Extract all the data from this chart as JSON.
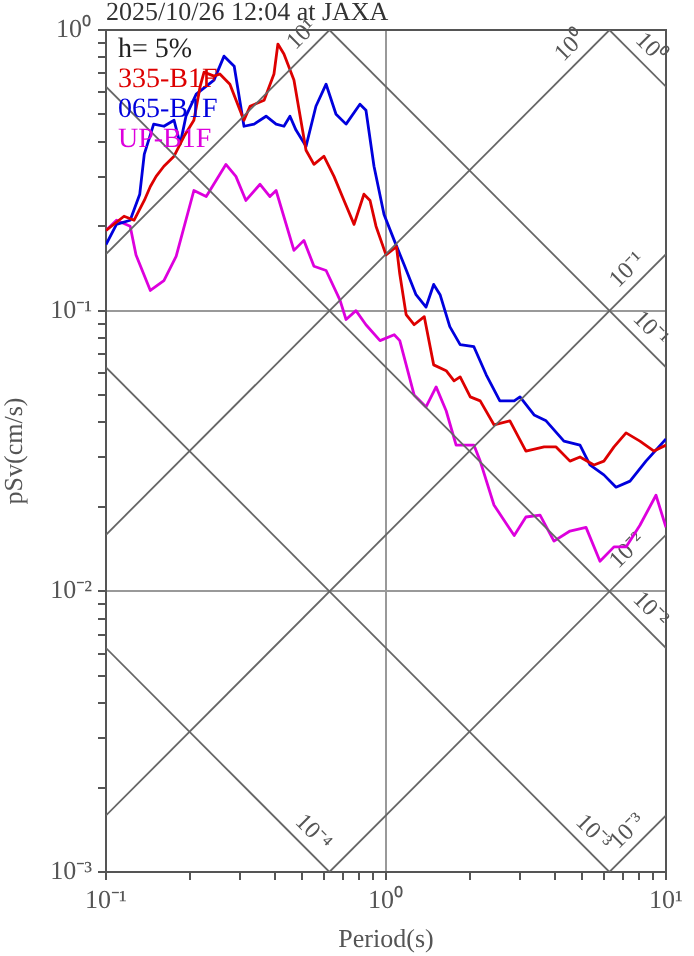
{
  "chart_data": {
    "type": "line",
    "title": "2025/10/26 12:04 at JAXA",
    "xlabel": "Period(s)",
    "ylabel": "pSv(cm/s)",
    "log": "xy",
    "grid": true,
    "legend": "top left",
    "xlim": [
      0.1,
      10
    ],
    "ylim": [
      0.001,
      1
    ],
    "xticks": [
      {
        "value": 0.1,
        "label": "10⁻¹"
      },
      {
        "value": 0.2,
        "label": null
      },
      {
        "value": 0.3,
        "label": null
      },
      {
        "value": 0.4,
        "label": null
      },
      {
        "value": 0.5,
        "label": null
      },
      {
        "value": 0.6,
        "label": null
      },
      {
        "value": 0.7,
        "label": null
      },
      {
        "value": 0.8,
        "label": null
      },
      {
        "value": 0.9,
        "label": null
      },
      {
        "value": 1,
        "label": "10⁰"
      },
      {
        "value": 2,
        "label": null
      },
      {
        "value": 3,
        "label": null
      },
      {
        "value": 4,
        "label": null
      },
      {
        "value": 5,
        "label": null
      },
      {
        "value": 6,
        "label": null
      },
      {
        "value": 7,
        "label": null
      },
      {
        "value": 8,
        "label": null
      },
      {
        "value": 9,
        "label": null
      },
      {
        "value": 10,
        "label": "10¹"
      }
    ],
    "yticks": [
      {
        "value": 0.001,
        "label": "10⁻³"
      },
      {
        "value": 0.002,
        "label": null
      },
      {
        "value": 0.003,
        "label": null
      },
      {
        "value": 0.004,
        "label": null
      },
      {
        "value": 0.005,
        "label": null
      },
      {
        "value": 0.006,
        "label": null
      },
      {
        "value": 0.007,
        "label": null
      },
      {
        "value": 0.008,
        "label": null
      },
      {
        "value": 0.009,
        "label": null
      },
      {
        "value": 0.01,
        "label": "10⁻²"
      },
      {
        "value": 0.02,
        "label": null
      },
      {
        "value": 0.03,
        "label": null
      },
      {
        "value": 0.04,
        "label": null
      },
      {
        "value": 0.05,
        "label": null
      },
      {
        "value": 0.06,
        "label": null
      },
      {
        "value": 0.07,
        "label": null
      },
      {
        "value": 0.08,
        "label": null
      },
      {
        "value": 0.09,
        "label": null
      },
      {
        "value": 0.1,
        "label": "10⁻¹"
      },
      {
        "value": 0.2,
        "label": null
      },
      {
        "value": 0.3,
        "label": null
      },
      {
        "value": 0.4,
        "label": null
      },
      {
        "value": 0.5,
        "label": null
      },
      {
        "value": 0.6,
        "label": null
      },
      {
        "value": 0.7,
        "label": null
      },
      {
        "value": 0.8,
        "label": null
      },
      {
        "value": 0.9,
        "label": null
      },
      {
        "value": 1,
        "label": "10⁰"
      }
    ],
    "annotations": [
      "h= 5%",
      {
        "text": "10¹",
        "x": 0.55,
        "y": 0.875
      },
      {
        "text": "10⁰",
        "x": 5,
        "y": 0.796
      },
      {
        "text": "10⁻¹",
        "x": 8,
        "y": 0.127
      },
      {
        "text": "10⁻²",
        "x": 8,
        "y": 0.0127
      },
      {
        "text": "10⁻³",
        "x": 8,
        "y": 0.00127
      },
      {
        "text": "10⁰",
        "x": 8,
        "y": 0.785
      },
      {
        "text": "10⁻¹",
        "x": 8,
        "y": 0.0785
      },
      {
        "text": "10⁻²",
        "x": 8,
        "y": 0.00785
      },
      {
        "text": "10⁻³",
        "x": 5,
        "y": 0.00126
      },
      {
        "text": "10⁻⁴",
        "x": 0.5,
        "y": 0.00126
      }
    ],
    "series": [
      {
        "color": "#666666",
        "x": [
          0.1,
          0.628
        ],
        "values": [
          0.159,
          1
        ]
      },
      {
        "color": "#666666",
        "x": [
          0.1,
          6.28
        ],
        "values": [
          0.0159,
          1
        ]
      },
      {
        "color": "#666666",
        "x": [
          0.1,
          10
        ],
        "values": [
          0.00159,
          0.159
        ]
      },
      {
        "color": "#666666",
        "x": [
          0.628,
          10
        ],
        "values": [
          0.001,
          0.0159
        ]
      },
      {
        "color": "#666666",
        "x": [
          6.28,
          10
        ],
        "values": [
          0.001,
          0.00159
        ]
      },
      {
        "color": "#666666",
        "x": [
          6.28,
          10
        ],
        "values": [
          1,
          0.628
        ]
      },
      {
        "color": "#666666",
        "x": [
          0.628,
          10
        ],
        "values": [
          1,
          0.0628
        ]
      },
      {
        "color": "#666666",
        "x": [
          0.1,
          10
        ],
        "values": [
          0.628,
          0.00628
        ]
      },
      {
        "color": "#666666",
        "x": [
          0.1,
          6.28
        ],
        "values": [
          0.0628,
          0.001
        ]
      },
      {
        "color": "#666666",
        "x": [
          0.1,
          0.628
        ],
        "values": [
          0.00628,
          0.001
        ]
      },
      {
        "name": "335-B1F",
        "color": "#dd0000",
        "x": [
          0.1,
          0.116,
          0.126,
          0.137,
          0.144,
          0.151,
          0.161,
          0.175,
          0.19,
          0.206,
          0.217,
          0.224,
          0.243,
          0.255,
          0.277,
          0.301,
          0.311,
          0.327,
          0.367,
          0.398,
          0.411,
          0.432,
          0.469,
          0.518,
          0.553,
          0.6,
          0.652,
          0.708,
          0.769,
          0.834,
          0.877,
          0.921,
          1.0,
          1.09,
          1.12,
          1.18,
          1.26,
          1.37,
          1.48,
          1.64,
          1.75,
          1.84,
          2.0,
          2.17,
          2.43,
          2.77,
          3.16,
          3.67,
          4.05,
          4.54,
          4.93,
          5.53,
          6.0,
          6.52,
          7.2,
          8.07,
          9.06,
          10
        ],
        "values": [
          0.193,
          0.217,
          0.21,
          0.247,
          0.277,
          0.301,
          0.327,
          0.355,
          0.418,
          0.477,
          0.631,
          0.708,
          0.685,
          0.697,
          0.641,
          0.518,
          0.477,
          0.535,
          0.562,
          0.697,
          0.891,
          0.821,
          0.663,
          0.373,
          0.332,
          0.355,
          0.301,
          0.247,
          0.203,
          0.26,
          0.247,
          0.2,
          0.158,
          0.169,
          0.135,
          0.0968,
          0.0891,
          0.0952,
          0.0641,
          0.0611,
          0.0562,
          0.0581,
          0.0493,
          0.0477,
          0.0392,
          0.0405,
          0.0316,
          0.0327,
          0.0327,
          0.0291,
          0.0301,
          0.0282,
          0.0291,
          0.0327,
          0.0367,
          0.0343,
          0.0316,
          0.0332
        ]
      },
      {
        "name": "065-B1F",
        "color": "#0000dd",
        "x": [
          0.1,
          0.109,
          0.122,
          0.132,
          0.137,
          0.148,
          0.161,
          0.175,
          0.184,
          0.193,
          0.21,
          0.243,
          0.264,
          0.287,
          0.311,
          0.338,
          0.373,
          0.405,
          0.432,
          0.454,
          0.477,
          0.518,
          0.562,
          0.611,
          0.663,
          0.72,
          0.807,
          0.848,
          0.906,
          0.984,
          1.07,
          1.16,
          1.28,
          1.39,
          1.48,
          1.56,
          1.69,
          1.84,
          2.06,
          2.28,
          2.55,
          2.87,
          3.01,
          3.38,
          3.73,
          4.32,
          4.93,
          5.35,
          6.0,
          6.63,
          7.44,
          8.48,
          10
        ],
        "values": [
          0.172,
          0.203,
          0.21,
          0.26,
          0.361,
          0.462,
          0.454,
          0.477,
          0.392,
          0.493,
          0.591,
          0.663,
          0.807,
          0.743,
          0.454,
          0.462,
          0.493,
          0.462,
          0.454,
          0.493,
          0.44,
          0.385,
          0.535,
          0.641,
          0.501,
          0.462,
          0.544,
          0.518,
          0.327,
          0.22,
          0.178,
          0.146,
          0.114,
          0.103,
          0.124,
          0.114,
          0.0877,
          0.0757,
          0.0744,
          0.0591,
          0.0477,
          0.0477,
          0.0493,
          0.0425,
          0.0405,
          0.0343,
          0.0332,
          0.0282,
          0.026,
          0.0235,
          0.0247,
          0.0291,
          0.0349
        ]
      },
      {
        "name": "UP-B1F",
        "color": "#dd00dd",
        "x": [
          0.1,
          0.109,
          0.122,
          0.128,
          0.144,
          0.161,
          0.178,
          0.206,
          0.228,
          0.268,
          0.291,
          0.316,
          0.355,
          0.385,
          0.405,
          0.469,
          0.509,
          0.553,
          0.611,
          0.685,
          0.72,
          0.781,
          0.848,
          0.952,
          1.07,
          1.12,
          1.26,
          1.39,
          1.51,
          1.64,
          1.78,
          2.06,
          2.17,
          2.43,
          2.87,
          3.16,
          3.55,
          3.98,
          4.54,
          5.18,
          5.81,
          6.52,
          7.2,
          8.07,
          9.21,
          10
        ],
        "values": [
          0.193,
          0.21,
          0.2,
          0.158,
          0.118,
          0.128,
          0.156,
          0.268,
          0.255,
          0.332,
          0.301,
          0.247,
          0.282,
          0.255,
          0.268,
          0.164,
          0.178,
          0.144,
          0.139,
          0.109,
          0.093,
          0.1,
          0.0891,
          0.0782,
          0.0821,
          0.0782,
          0.0501,
          0.0454,
          0.0535,
          0.044,
          0.0332,
          0.0332,
          0.0291,
          0.0203,
          0.0158,
          0.0184,
          0.0187,
          0.0151,
          0.0164,
          0.0169,
          0.0128,
          0.0144,
          0.0144,
          0.0172,
          0.022,
          0.0169
        ]
      }
    ]
  }
}
